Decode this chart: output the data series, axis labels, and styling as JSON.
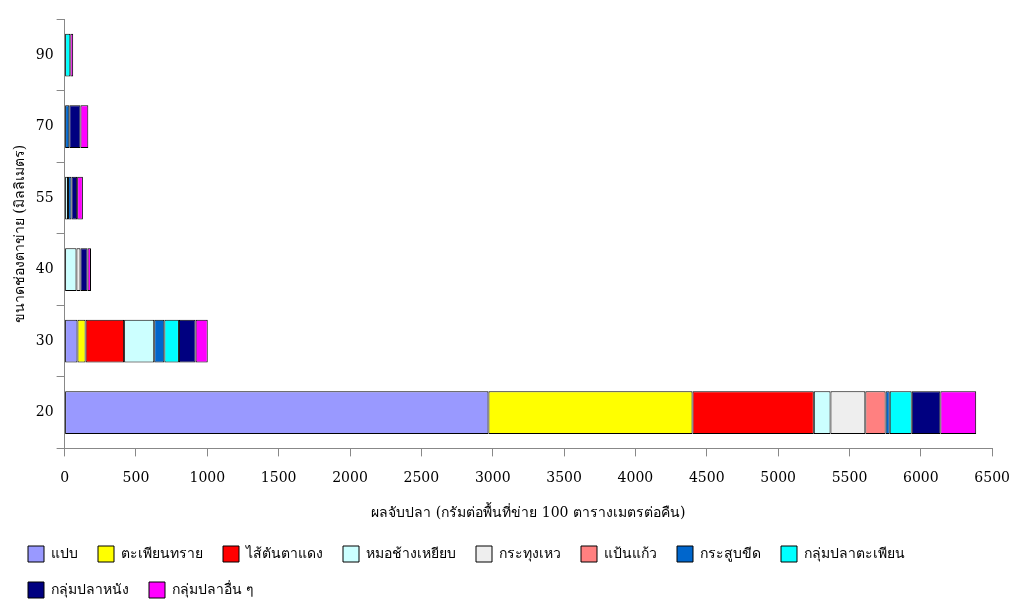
{
  "chart_data": {
    "type": "bar",
    "orientation": "horizontal",
    "stacked": true,
    "xlabel": "ผลจับปลา (กรัมต่อพื้นที่ข่าย 100 ตารางเมตรต่อคืน)",
    "ylabel": "ขนาดช่องตาข่าย (มิลลิเมตร)",
    "categories": [
      "90",
      "70",
      "55",
      "40",
      "30",
      "20"
    ],
    "xlim": [
      0,
      6500
    ],
    "xticks": [
      0,
      500,
      1000,
      1500,
      2000,
      2500,
      3000,
      3500,
      4000,
      4500,
      5000,
      5500,
      6000,
      6500
    ],
    "grid": false,
    "legend": "bottom",
    "series": [
      {
        "name": "แปบ",
        "color": "#9999ff",
        "values": [
          null,
          null,
          null,
          null,
          90,
          2970
        ]
      },
      {
        "name": "ตะเพียนทราย",
        "color": "#ffff00",
        "values": [
          null,
          null,
          null,
          null,
          57,
          1430
        ]
      },
      {
        "name": "ไส้ตันตาแดง",
        "color": "#ff0000",
        "values": [
          null,
          null,
          null,
          null,
          270,
          850
        ]
      },
      {
        "name": "หมอช้างเหยียบ",
        "color": "#ccffff",
        "values": [
          null,
          null,
          24,
          83,
          211,
          117
        ]
      },
      {
        "name": "กระทุงเหว",
        "color": "#eeeeee",
        "values": [
          null,
          null,
          null,
          28,
          null,
          244
        ]
      },
      {
        "name": "แป้นแก้ว",
        "color": "#ff8080",
        "values": [
          null,
          null,
          null,
          null,
          null,
          142
        ]
      },
      {
        "name": "กระสูบขีด",
        "color": "#0066cc",
        "values": [
          null,
          33,
          24,
          null,
          71,
          29
        ]
      },
      {
        "name": "กลุ่มปลาตะเพียน",
        "color": "#00ffff",
        "values": [
          40,
          null,
          null,
          null,
          102,
          154
        ]
      },
      {
        "name": "กลุ่มปลาหนัง",
        "color": "#000080",
        "values": [
          null,
          78,
          40,
          50,
          117,
          201
        ]
      },
      {
        "name": "กลุ่มปลาอื่น ๆ",
        "color": "#ff00ff",
        "values": [
          20,
          55,
          40,
          24,
          85,
          251
        ]
      }
    ]
  }
}
